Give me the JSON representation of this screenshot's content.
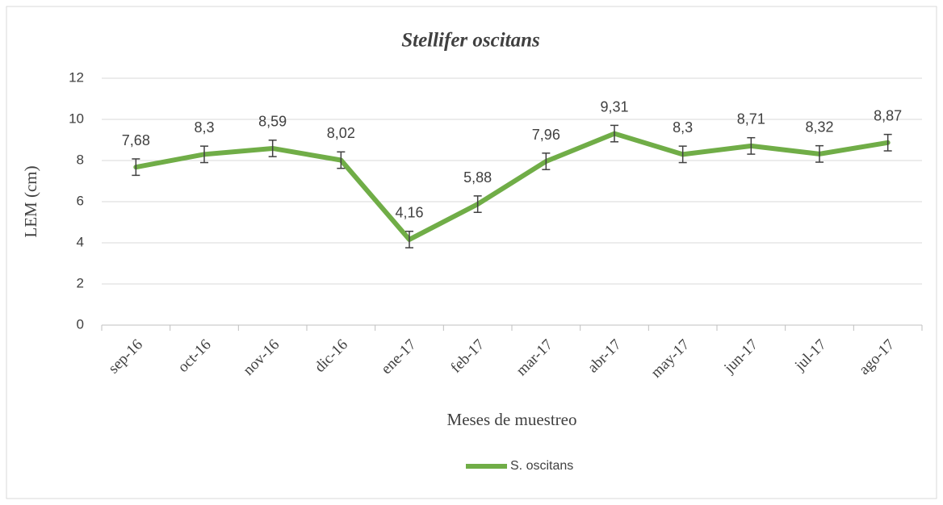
{
  "chart_data": {
    "type": "line",
    "title": "Stellifer oscitans",
    "x_label": "Meses de muestreo",
    "y_label": "LEM (cm)",
    "categories": [
      "sep-16",
      "oct-16",
      "nov-16",
      "dic-16",
      "ene-17",
      "feb-17",
      "mar-17",
      "abr-17",
      "may-17",
      "jun-17",
      "jul-17",
      "ago-17"
    ],
    "series": [
      {
        "name": "S. oscitans",
        "color": "#70ad47",
        "values": [
          7.68,
          8.3,
          8.59,
          8.02,
          4.16,
          5.88,
          7.96,
          9.31,
          8.3,
          8.71,
          8.32,
          8.87
        ],
        "value_labels": [
          "7,68",
          "8,3",
          "8,59",
          "8,02",
          "4,16",
          "5,88",
          "7,96",
          "9,31",
          "8,3",
          "8,71",
          "8,32",
          "8,87"
        ],
        "errors": [
          0.4,
          0.4,
          0.4,
          0.4,
          0.4,
          0.4,
          0.4,
          0.4,
          0.4,
          0.4,
          0.4,
          0.4
        ]
      }
    ],
    "ylim": [
      0,
      12
    ],
    "yticks": [
      0,
      2,
      4,
      6,
      8,
      10,
      12
    ],
    "grid": true,
    "legend": "bottom"
  }
}
